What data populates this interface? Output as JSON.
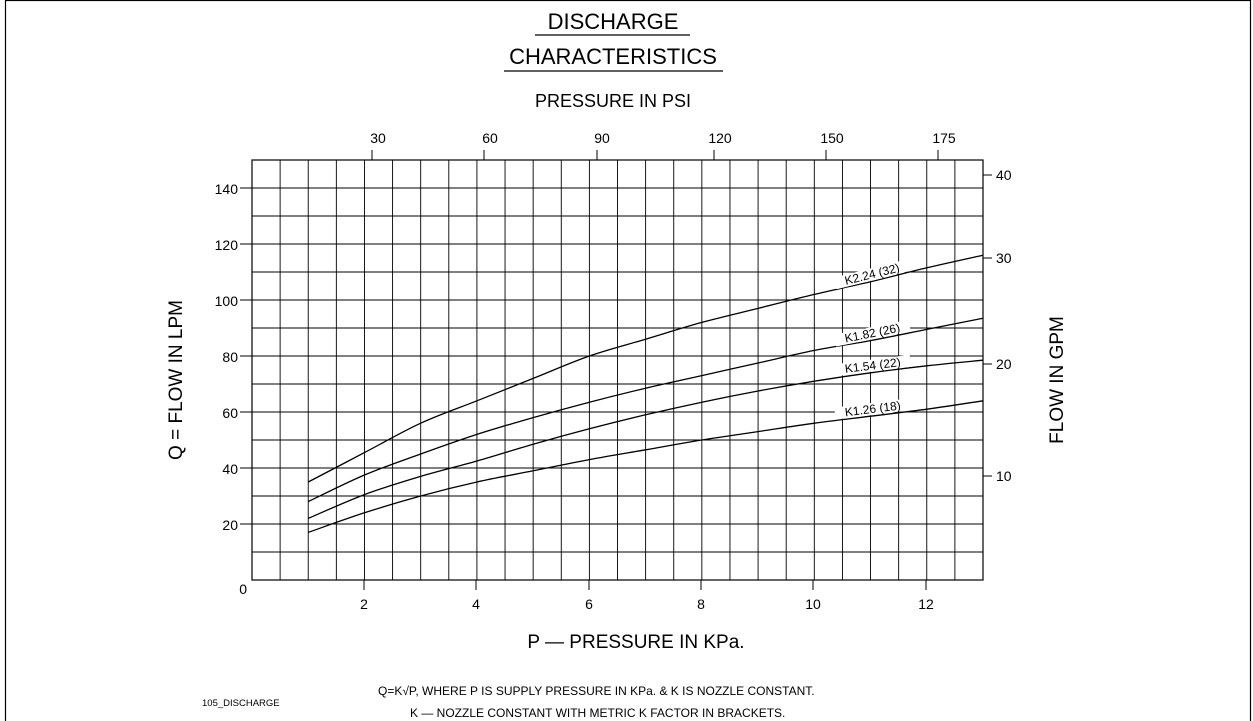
{
  "chart_data": {
    "type": "line",
    "title_line1": "DISCHARGE",
    "title_line2": "CHARACTERISTICS",
    "top_axis_label": "PRESSURE IN PSI",
    "top_ticks": [
      "30",
      "60",
      "90",
      "120",
      "150",
      "175"
    ],
    "xlabel": "P — PRESSURE IN KPa.",
    "ylabel": "Q = FLOW IN LPM",
    "right_axis_label": "FLOW IN GPM",
    "x_ticks": [
      "2",
      "4",
      "6",
      "8",
      "10",
      "12"
    ],
    "y_ticks": [
      "0",
      "20",
      "40",
      "60",
      "80",
      "100",
      "120",
      "140"
    ],
    "right_ticks": [
      "10",
      "20",
      "30",
      "40"
    ],
    "xlim": [
      0,
      13
    ],
    "ylim": [
      0,
      150
    ],
    "series": [
      {
        "name": "K2.24 (32)",
        "x": [
          1,
          2,
          3,
          4,
          5,
          6,
          7,
          8,
          9,
          10,
          11,
          12,
          13
        ],
        "values": [
          35,
          45.5,
          56,
          64,
          72,
          80,
          86,
          92,
          97,
          102,
          106.5,
          111.5,
          116
        ]
      },
      {
        "name": "K1.82 (26)",
        "x": [
          1,
          2,
          3,
          4,
          5,
          6,
          7,
          8,
          9,
          10,
          11,
          12,
          13
        ],
        "values": [
          28,
          37.5,
          45,
          52,
          58,
          63.5,
          68.5,
          73,
          77.5,
          82,
          85.5,
          89.5,
          93.5
        ]
      },
      {
        "name": "K1.54 (22)",
        "x": [
          1,
          2,
          3,
          4,
          5,
          6,
          7,
          8,
          9,
          10,
          11,
          12,
          13
        ],
        "values": [
          22,
          30.5,
          37,
          42.5,
          48.5,
          54,
          59,
          63.5,
          67.5,
          71,
          74,
          76.5,
          78.5
        ]
      },
      {
        "name": "K1.26 (18)",
        "x": [
          1,
          2,
          3,
          4,
          5,
          6,
          7,
          8,
          9,
          10,
          11,
          12,
          13
        ],
        "values": [
          17,
          24,
          30,
          35,
          39,
          43,
          46.5,
          50,
          53,
          56,
          58.5,
          61,
          64
        ]
      }
    ],
    "grid": true
  },
  "footer": {
    "formula_line": "Q=K√P, WHERE P IS SUPPLY PRESSURE IN KPa. & K IS NOZZLE CONSTANT.",
    "k_line": "K —   NOZZLE CONSTANT WITH METRIC K FACTOR IN BRACKETS.",
    "drawing_id": "105_DISCHARGE"
  }
}
